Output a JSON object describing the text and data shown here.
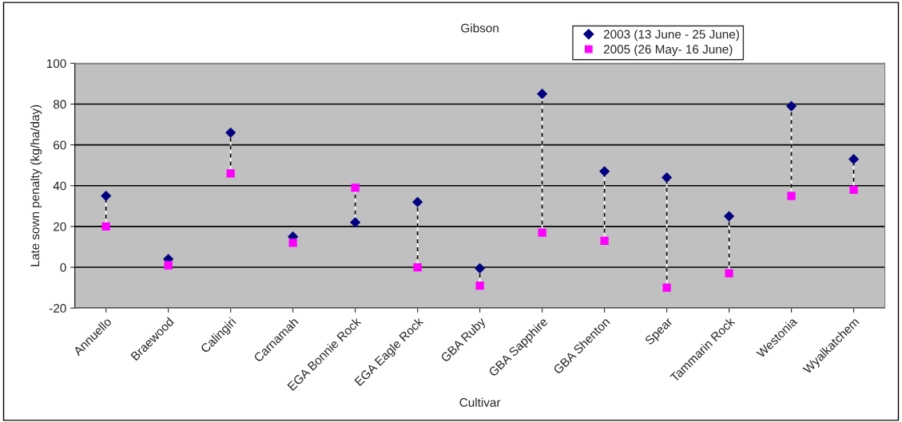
{
  "chart_data": {
    "type": "scatter",
    "title": "Gibson",
    "xlabel": "Cultivar",
    "ylabel": "Late sown penalty (kg/ha/day)",
    "categories": [
      "Annuello",
      "Braewood",
      "Calingiri",
      "Carnamah",
      "EGA Bonnie Rock",
      "EGA Eagle Rock",
      "GBA Ruby",
      "GBA Sapphire",
      "GBA Shenton",
      "Spear",
      "Tammarin Rock",
      "Westonia",
      "Wyalkatchem"
    ],
    "series": [
      {
        "name": "2003 (13 June - 25 June)",
        "color": "#000080",
        "marker": "diamond",
        "values": [
          35,
          4,
          66,
          15,
          22,
          32,
          -0.5,
          85,
          47,
          44,
          25,
          79,
          53
        ]
      },
      {
        "name": "2005 (26 May- 16 June)",
        "color": "#ff00ff",
        "marker": "square",
        "values": [
          20,
          1,
          46,
          12,
          39,
          0,
          -9,
          17,
          13,
          -10,
          -3,
          35,
          38
        ]
      }
    ],
    "ylim": [
      -20,
      100
    ],
    "yticks": [
      -20,
      0,
      20,
      40,
      60,
      80,
      100
    ],
    "grid": "y",
    "legend": "top"
  }
}
